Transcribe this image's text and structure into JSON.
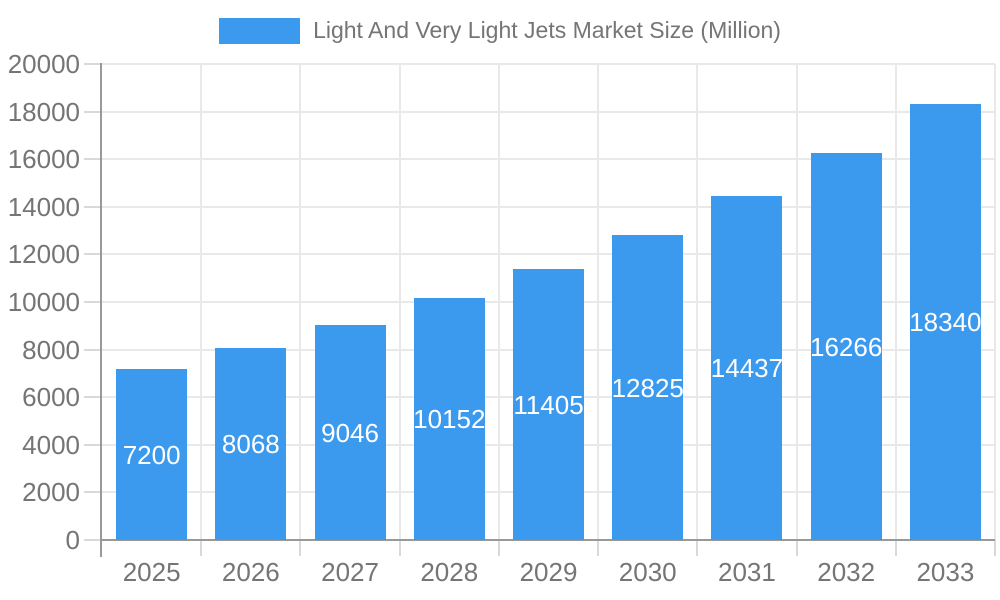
{
  "chart_data": {
    "type": "bar",
    "title": "Light And Very Light Jets Market Size (Million)",
    "legend": {
      "label": "Light And Very Light Jets Market Size (Million)",
      "position": "top"
    },
    "categories": [
      "2025",
      "2026",
      "2027",
      "2028",
      "2029",
      "2030",
      "2031",
      "2032",
      "2033"
    ],
    "series": [
      {
        "name": "Light And Very Light Jets Market Size (Million)",
        "values": [
          7200,
          8068,
          9046,
          10152,
          11405,
          12825,
          14437,
          16266,
          18340
        ]
      }
    ],
    "bar_value_labels": [
      "7200",
      "8068",
      "9046",
      "10152",
      "11405",
      "12825",
      "14437",
      "16266",
      "18340"
    ],
    "xlabel": "",
    "ylabel": "",
    "ylim": [
      0,
      20000
    ],
    "y_tick_step": 2000,
    "y_tick_labels": [
      "0",
      "2000",
      "4000",
      "6000",
      "8000",
      "10000",
      "12000",
      "14000",
      "16000",
      "18000",
      "20000"
    ],
    "grid": true,
    "value_labels_inside_bars": true
  },
  "colors": {
    "bar": "#3b99ee",
    "bar_label": "#ffffff",
    "axis_text": "#757575",
    "legend_text": "#757575",
    "axis_line": "#999999",
    "gridline": "#e9e9e9",
    "tick": "#d9d9d9",
    "background": "#ffffff"
  }
}
